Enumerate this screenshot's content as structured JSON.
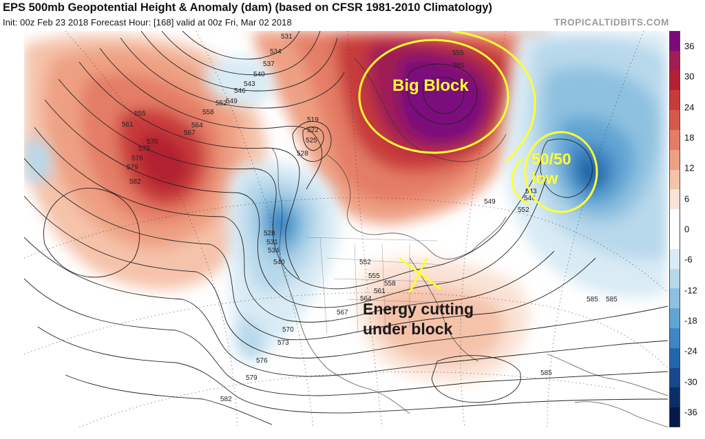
{
  "header": {
    "title": "EPS 500mb Geopotential Height & Anomaly (dam) (based on CFSR 1981-2010 Climatology)",
    "subtitle": "Init: 00z Feb 23 2018   Forecast Hour: [168]   valid at 00z Fri, Mar 02 2018",
    "brand": "TROPICALTIDBITS.COM"
  },
  "colorbar": {
    "labels": [
      "36",
      "30",
      "24",
      "18",
      "12",
      "6",
      "0",
      "-6",
      "-12",
      "-18",
      "-24",
      "-30",
      "-36"
    ],
    "colors": [
      "#7b0a7b",
      "#a01e55",
      "#b22232",
      "#c83b3b",
      "#d65a4a",
      "#e47d66",
      "#eea083",
      "#f5c3aa",
      "#fae3d6",
      "#ffffff",
      "#ffffff",
      "#d9ebf5",
      "#b8d8eb",
      "#8ec1e0",
      "#62a5d3",
      "#3f86c2",
      "#2466aa",
      "#17488a",
      "#0c2e68",
      "#05184a"
    ]
  },
  "contours": {
    "labels": [
      "531",
      "534",
      "537",
      "540",
      "543",
      "546",
      "549",
      "552",
      "555",
      "558",
      "561",
      "564",
      "567",
      "570",
      "573",
      "576",
      "579",
      "582",
      "585",
      "519",
      "522",
      "525",
      "528",
      "555",
      "561",
      "543",
      "546",
      "549",
      "552",
      "552",
      "555",
      "558",
      "561",
      "564",
      "567",
      "570",
      "573",
      "576",
      "579",
      "582",
      "585",
      "585",
      "528",
      "531",
      "534",
      "540"
    ]
  },
  "annotations": {
    "big_block": "Big Block",
    "fifty_low_line1": "50/50",
    "fifty_low_line2": "low",
    "energy_line1": "Energy cutting",
    "energy_line2": "under block"
  }
}
